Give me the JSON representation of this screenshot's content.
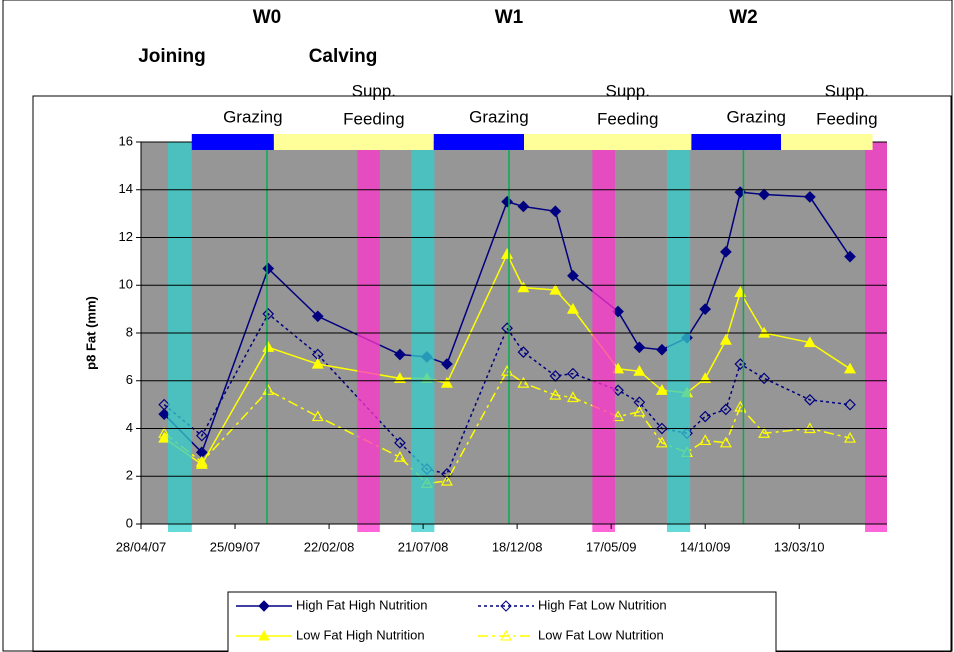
{
  "chart_data": {
    "type": "line",
    "ylabel": "p8 Fat (mm)",
    "x": [
      "2007-06-04",
      "2007-08-03",
      "2007-11-17",
      "2008-02-04",
      "2008-06-14",
      "2008-07-27",
      "2008-08-28",
      "2008-12-02",
      "2008-12-28",
      "2009-02-17",
      "2009-03-17",
      "2009-05-28",
      "2009-07-01",
      "2009-08-06",
      "2009-09-15",
      "2009-10-14",
      "2009-11-16",
      "2009-12-09",
      "2010-01-16",
      "2010-03-30",
      "2010-06-02"
    ],
    "series": [
      {
        "name": "High Fat High Nutrition",
        "color": "#000080",
        "dash": "solid",
        "marker": "diamond",
        "filled": true,
        "values": [
          4.6,
          3.0,
          10.7,
          8.7,
          7.1,
          7.0,
          6.7,
          13.5,
          13.3,
          13.1,
          10.4,
          8.9,
          7.4,
          7.3,
          7.8,
          9.0,
          11.4,
          13.9,
          13.8,
          13.7,
          11.2
        ]
      },
      {
        "name": "High Fat Low Nutrition",
        "color": "#000080",
        "dash": "dotted",
        "marker": "diamond",
        "filled": false,
        "values": [
          5.0,
          3.7,
          8.8,
          7.1,
          3.4,
          2.3,
          2.1,
          8.2,
          7.2,
          6.2,
          6.3,
          5.6,
          5.1,
          4.0,
          3.8,
          4.5,
          4.8,
          6.7,
          6.1,
          5.2,
          5.0
        ]
      },
      {
        "name": "Low Fat High Nutrition",
        "color": "#ffff00",
        "dash": "solid",
        "marker": "triangle",
        "filled": true,
        "values": [
          3.6,
          2.5,
          7.4,
          6.7,
          6.1,
          6.1,
          5.9,
          11.3,
          9.9,
          9.8,
          9.0,
          6.5,
          6.4,
          5.6,
          5.5,
          6.1,
          7.7,
          9.7,
          8.0,
          7.6,
          6.5
        ]
      },
      {
        "name": "Low Fat Low Nutrition",
        "color": "#ffff00",
        "dash": "dashdot",
        "marker": "triangle",
        "filled": false,
        "values": [
          3.8,
          2.6,
          5.6,
          4.5,
          2.8,
          1.7,
          1.8,
          6.4,
          5.9,
          5.4,
          5.3,
          4.5,
          4.7,
          3.4,
          3.0,
          3.5,
          3.4,
          4.9,
          3.8,
          4.0,
          3.6
        ]
      }
    ],
    "xlim": [
      "2007-04-28",
      "2010-07-31"
    ],
    "xticks": [
      {
        "value": "2007-04-28",
        "label": "28/04/07"
      },
      {
        "value": "2007-09-25",
        "label": "25/09/07"
      },
      {
        "value": "2008-02-22",
        "label": "22/02/08"
      },
      {
        "value": "2008-07-21",
        "label": "21/07/08"
      },
      {
        "value": "2008-12-18",
        "label": "18/12/08"
      },
      {
        "value": "2009-05-17",
        "label": "17/05/09"
      },
      {
        "value": "2009-10-14",
        "label": "14/10/09"
      },
      {
        "value": "2010-03-13",
        "label": "13/03/10"
      }
    ],
    "ylim": [
      0,
      16
    ],
    "yticks": [
      0,
      2,
      4,
      6,
      8,
      10,
      12,
      14,
      16
    ],
    "grid": true,
    "legend": "bottom",
    "weaning": {
      "color": "#00b050",
      "events": [
        {
          "label": "W0",
          "date": "2007-11-15"
        },
        {
          "label": "W1",
          "date": "2008-12-05"
        },
        {
          "label": "W2",
          "date": "2009-12-14"
        }
      ]
    },
    "joining": {
      "label": "Joining",
      "color": "#33cccc",
      "periods": [
        [
          "2007-06-10",
          "2007-07-18"
        ],
        [
          "2008-07-02",
          "2008-08-08"
        ],
        [
          "2009-08-14",
          "2009-09-20"
        ]
      ]
    },
    "calving": {
      "label": "Calving",
      "color": "#ff33cc",
      "periods": [
        [
          "2008-04-07",
          "2008-05-13"
        ],
        [
          "2009-04-17",
          "2009-05-23"
        ],
        [
          "2010-06-26",
          "2010-08-04"
        ]
      ]
    },
    "feeding": [
      {
        "lines": [
          "Grazing"
        ],
        "color": "#0000ff",
        "start": "2007-07-18",
        "end": "2007-11-26"
      },
      {
        "lines": [
          "Supp.",
          "Feeding"
        ],
        "color": "#ffff99",
        "start": "2007-11-26",
        "end": "2008-08-07"
      },
      {
        "lines": [
          "Grazing"
        ],
        "color": "#0000ff",
        "start": "2008-08-07",
        "end": "2008-12-29"
      },
      {
        "lines": [
          "Supp.",
          "Feeding"
        ],
        "color": "#ffff99",
        "start": "2008-12-29",
        "end": "2009-09-22"
      },
      {
        "lines": [
          "Grazing"
        ],
        "color": "#0000ff",
        "start": "2009-09-22",
        "end": "2010-02-12"
      },
      {
        "lines": [
          "Supp.",
          "Feeding"
        ],
        "color": "#ffff99",
        "start": "2010-02-12",
        "end": "2010-07-08"
      }
    ]
  }
}
